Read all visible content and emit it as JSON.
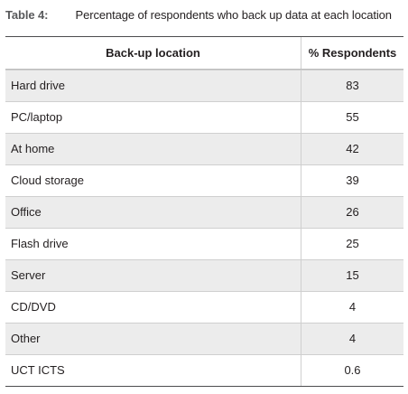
{
  "caption": {
    "label": "Table 4:",
    "text": "Percentage of respondents who back up data at each location"
  },
  "table": {
    "headers": [
      "Back-up location",
      "% Respondents"
    ],
    "rows": [
      {
        "location": "Hard drive",
        "percent": "83"
      },
      {
        "location": "PC/laptop",
        "percent": "55"
      },
      {
        "location": "At home",
        "percent": "42"
      },
      {
        "location": "Cloud storage",
        "percent": "39"
      },
      {
        "location": "Office",
        "percent": "26"
      },
      {
        "location": "Flash drive",
        "percent": "25"
      },
      {
        "location": "Server",
        "percent": "15"
      },
      {
        "location": "CD/DVD",
        "percent": "4"
      },
      {
        "location": "Other",
        "percent": "4"
      },
      {
        "location": "UCT ICTS",
        "percent": "0.6"
      }
    ]
  },
  "colors": {
    "shaded_row": "#ececec",
    "text": "#231f20",
    "caption_label": "#58595b",
    "rule": "#4d4d4f"
  }
}
